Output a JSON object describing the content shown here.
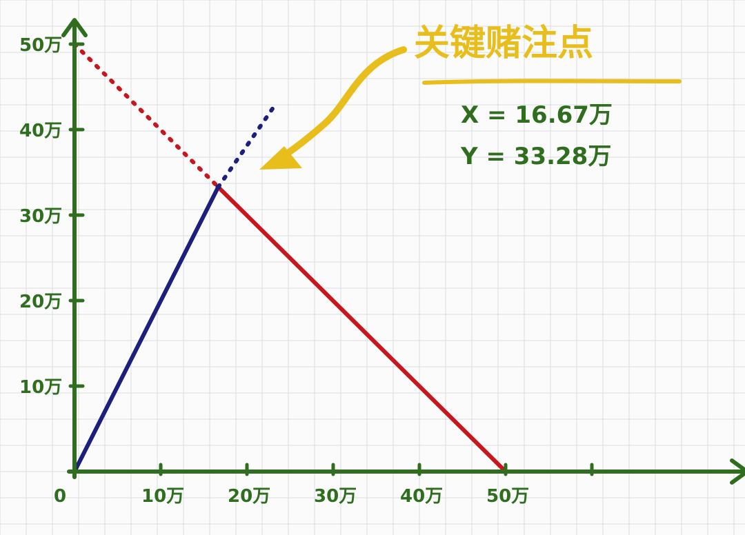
{
  "chart_data": {
    "type": "line",
    "x_ticks": [
      {
        "value": 0,
        "label": "0"
      },
      {
        "value": 10,
        "label": "10万"
      },
      {
        "value": 20,
        "label": "20万"
      },
      {
        "value": 30,
        "label": "30万"
      },
      {
        "value": 40,
        "label": "40万"
      },
      {
        "value": 50,
        "label": "50万"
      }
    ],
    "y_ticks": [
      {
        "value": 10,
        "label": "10万"
      },
      {
        "value": 20,
        "label": "20万"
      },
      {
        "value": 30,
        "label": "30万"
      },
      {
        "value": 40,
        "label": "40万"
      },
      {
        "value": 50,
        "label": "50万"
      }
    ],
    "xlim": [
      0,
      78
    ],
    "ylim": [
      0,
      52
    ],
    "grid": true,
    "series": [
      {
        "color": "#1c1f7c",
        "solid_points": [
          [
            0,
            0
          ],
          [
            16.67,
            33.28
          ]
        ],
        "dotted_points": [
          [
            16.67,
            33.28
          ],
          [
            23,
            42.5
          ]
        ]
      },
      {
        "color": "#c8161d",
        "solid_points": [
          [
            16.67,
            33.28
          ],
          [
            50,
            0
          ]
        ],
        "dotted_points": [
          [
            0,
            50
          ],
          [
            16.67,
            33.28
          ]
        ]
      }
    ],
    "annotation": {
      "title": "关键赌注点",
      "x_line": "X = 16.67万",
      "y_line": "Y = 33.28万",
      "point": [
        16.67,
        33.28
      ],
      "arrow_color": "#e8be1d"
    }
  },
  "colors": {
    "axis": "#2f6d1f",
    "grid": "#d9dde2",
    "title": "#e8be1d"
  }
}
